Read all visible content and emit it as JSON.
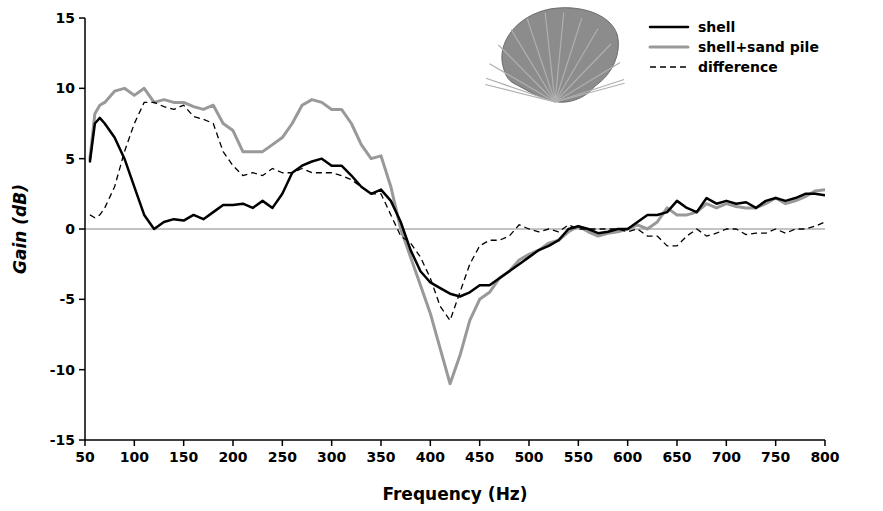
{
  "chart_data": {
    "type": "line",
    "x_label": "Frequency (Hz)",
    "y_label": "Gain (dB)",
    "x": [
      55,
      60,
      65,
      70,
      80,
      90,
      100,
      110,
      120,
      130,
      140,
      150,
      160,
      170,
      180,
      190,
      200,
      210,
      220,
      230,
      240,
      250,
      260,
      270,
      280,
      290,
      300,
      310,
      320,
      330,
      340,
      350,
      360,
      370,
      380,
      390,
      400,
      410,
      420,
      430,
      440,
      450,
      460,
      470,
      480,
      490,
      500,
      510,
      520,
      530,
      540,
      550,
      560,
      570,
      580,
      590,
      600,
      610,
      620,
      630,
      640,
      650,
      660,
      670,
      680,
      690,
      700,
      710,
      720,
      730,
      740,
      750,
      760,
      770,
      780,
      790,
      800
    ],
    "series": [
      {
        "name": "shell",
        "color": "#000000",
        "line_style": "solid",
        "values": [
          4.8,
          7.5,
          7.9,
          7.5,
          6.5,
          5,
          3,
          1,
          0,
          0.5,
          0.7,
          0.6,
          1,
          0.7,
          1.2,
          1.7,
          1.7,
          1.8,
          1.5,
          2,
          1.5,
          2.5,
          4,
          4.5,
          4.8,
          5,
          4.5,
          4.5,
          3.8,
          3,
          2.5,
          2.8,
          2,
          0.5,
          -1.5,
          -3,
          -3.8,
          -4.2,
          -4.6,
          -4.8,
          -4.5,
          -4,
          -4,
          -3.5,
          -3,
          -2.5,
          -2,
          -1.5,
          -1.2,
          -0.8,
          0,
          0.2,
          0,
          -0.3,
          -0.2,
          0,
          0,
          0.5,
          1,
          1,
          1.2,
          2,
          1.5,
          1.2,
          2.2,
          1.8,
          2,
          1.8,
          1.9,
          1.5,
          2,
          2.2,
          2,
          2.2,
          2.5,
          2.5,
          2.4
        ]
      },
      {
        "name": "shell+sand pile",
        "color": "#999999",
        "line_style": "solid",
        "values": [
          5,
          8.2,
          8.8,
          9,
          9.8,
          10,
          9.5,
          10,
          9,
          9.2,
          9,
          9,
          8.7,
          8.5,
          8.8,
          7.5,
          7,
          5.5,
          5.5,
          5.5,
          6,
          6.5,
          7.5,
          8.8,
          9.2,
          9,
          8.5,
          8.5,
          7.5,
          6,
          5,
          5.2,
          3,
          0,
          -2,
          -4,
          -6,
          -8.5,
          -11,
          -9,
          -6.5,
          -5,
          -4.5,
          -3.5,
          -3,
          -2.2,
          -1.8,
          -1.5,
          -1,
          -0.8,
          -0.2,
          0.2,
          -0.2,
          -0.5,
          -0.3,
          -0.2,
          0,
          0.3,
          0,
          0.5,
          1.5,
          1,
          1,
          1.2,
          1.8,
          1.5,
          1.8,
          1.6,
          1.5,
          1.5,
          1.8,
          2.2,
          1.8,
          2,
          2.3,
          2.7,
          2.8
        ]
      },
      {
        "name": "difference",
        "color": "#000000",
        "line_style": "dashed",
        "values": [
          1,
          0.8,
          1,
          1.5,
          3,
          5.5,
          7.5,
          9,
          9,
          8.7,
          8.5,
          8.8,
          8,
          7.8,
          7.5,
          5.5,
          4.5,
          3.8,
          4,
          3.8,
          4.3,
          4,
          4,
          4.3,
          4,
          4,
          4,
          3.8,
          3.5,
          3,
          2.5,
          2.5,
          1,
          -0.5,
          -1,
          -2,
          -3.5,
          -5.5,
          -6.5,
          -4.5,
          -2.5,
          -1.2,
          -0.8,
          -0.8,
          -0.5,
          0.3,
          0,
          -0.2,
          0,
          -0.2,
          0.3,
          0,
          0,
          0,
          0,
          0,
          -0.2,
          0,
          -0.5,
          -0.5,
          -1.2,
          -1.2,
          -0.5,
          0,
          -0.5,
          -0.3,
          0,
          0,
          -0.4,
          -0.3,
          -0.3,
          0,
          -0.3,
          0,
          0,
          0.2,
          0.5
        ]
      }
    ],
    "xlim": [
      50,
      800
    ],
    "xticks": [
      50,
      100,
      150,
      200,
      250,
      300,
      350,
      400,
      450,
      500,
      550,
      600,
      650,
      700,
      750,
      800
    ],
    "ylim": [
      -15,
      15
    ],
    "yticks": [
      -15,
      -10,
      -5,
      0,
      5,
      10,
      15
    ],
    "legend": "upper right",
    "grid": false
  }
}
